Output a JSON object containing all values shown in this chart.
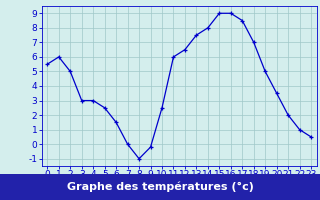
{
  "hours": [
    0,
    1,
    2,
    3,
    4,
    5,
    6,
    7,
    8,
    9,
    10,
    11,
    12,
    13,
    14,
    15,
    16,
    17,
    18,
    19,
    20,
    21,
    22,
    23
  ],
  "temps": [
    5.5,
    6.0,
    5.0,
    3.0,
    3.0,
    2.5,
    1.5,
    0.0,
    -1.0,
    -0.2,
    2.5,
    6.0,
    6.5,
    7.5,
    8.0,
    9.0,
    9.0,
    8.5,
    7.0,
    5.0,
    3.5,
    2.0,
    1.0,
    0.5
  ],
  "xlabel": "Graphe des températures (°c)",
  "ylim": [
    -1.5,
    9.5
  ],
  "xlim": [
    -0.5,
    23.5
  ],
  "yticks": [
    -1,
    0,
    1,
    2,
    3,
    4,
    5,
    6,
    7,
    8,
    9
  ],
  "xticks": [
    0,
    1,
    2,
    3,
    4,
    5,
    6,
    7,
    8,
    9,
    10,
    11,
    12,
    13,
    14,
    15,
    16,
    17,
    18,
    19,
    20,
    21,
    22,
    23
  ],
  "line_color": "#0000cc",
  "marker_color": "#0000cc",
  "bg_color": "#d4eeed",
  "grid_color": "#a0c8c8",
  "xlabel_bg": "#2222aa",
  "xlabel_color": "#ffffff",
  "xlabel_fontsize": 8,
  "tick_fontsize": 6.5,
  "axis_label_color": "#0000cc"
}
